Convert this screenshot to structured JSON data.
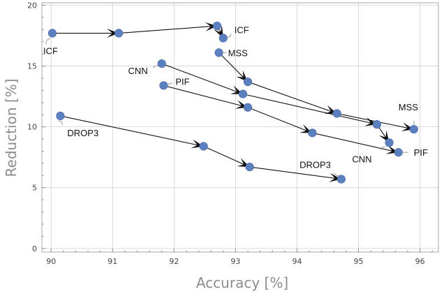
{
  "chart_data": {
    "type": "scatter",
    "xlabel": "Accuracy [%]",
    "ylabel": "Reduction [%]",
    "xlim": [
      89.85,
      96.3
    ],
    "ylim": [
      -0.3,
      20.2
    ],
    "x_ticks": [
      "90",
      "91",
      "92",
      "93",
      "94",
      "95",
      "96"
    ],
    "y_ticks": [
      "0",
      "5",
      "10",
      "15",
      "20"
    ],
    "grid": true,
    "marker_color": "#5b7fbf",
    "series": [
      {
        "name": "ICF",
        "start_label": "ICF",
        "end_label": "ICF",
        "points": [
          {
            "x": 90.02,
            "y": 17.7
          },
          {
            "x": 91.1,
            "y": 17.7
          },
          {
            "x": 92.7,
            "y": 18.3
          },
          {
            "x": 92.8,
            "y": 17.3
          }
        ]
      },
      {
        "name": "MSS",
        "start_label": "MSS",
        "end_label": "MSS",
        "points": [
          {
            "x": 92.73,
            "y": 16.1
          },
          {
            "x": 93.2,
            "y": 13.7
          },
          {
            "x": 94.65,
            "y": 11.1
          },
          {
            "x": 95.9,
            "y": 9.8
          }
        ]
      },
      {
        "name": "CNN",
        "start_label": "CNN",
        "end_label": "CNN",
        "points": [
          {
            "x": 91.8,
            "y": 15.2
          },
          {
            "x": 93.12,
            "y": 12.7
          },
          {
            "x": 95.3,
            "y": 10.2
          },
          {
            "x": 95.5,
            "y": 8.7
          }
        ]
      },
      {
        "name": "PIF",
        "start_label": "PIF",
        "end_label": "PIF",
        "points": [
          {
            "x": 91.83,
            "y": 13.4
          },
          {
            "x": 93.2,
            "y": 11.6
          },
          {
            "x": 94.25,
            "y": 9.5
          },
          {
            "x": 95.65,
            "y": 7.9
          }
        ]
      },
      {
        "name": "DROP3",
        "start_label": "DROP3",
        "end_label": "DROP3",
        "points": [
          {
            "x": 90.15,
            "y": 10.9
          },
          {
            "x": 92.48,
            "y": 8.4
          },
          {
            "x": 93.23,
            "y": 6.7
          },
          {
            "x": 94.72,
            "y": 5.7
          }
        ]
      }
    ]
  }
}
